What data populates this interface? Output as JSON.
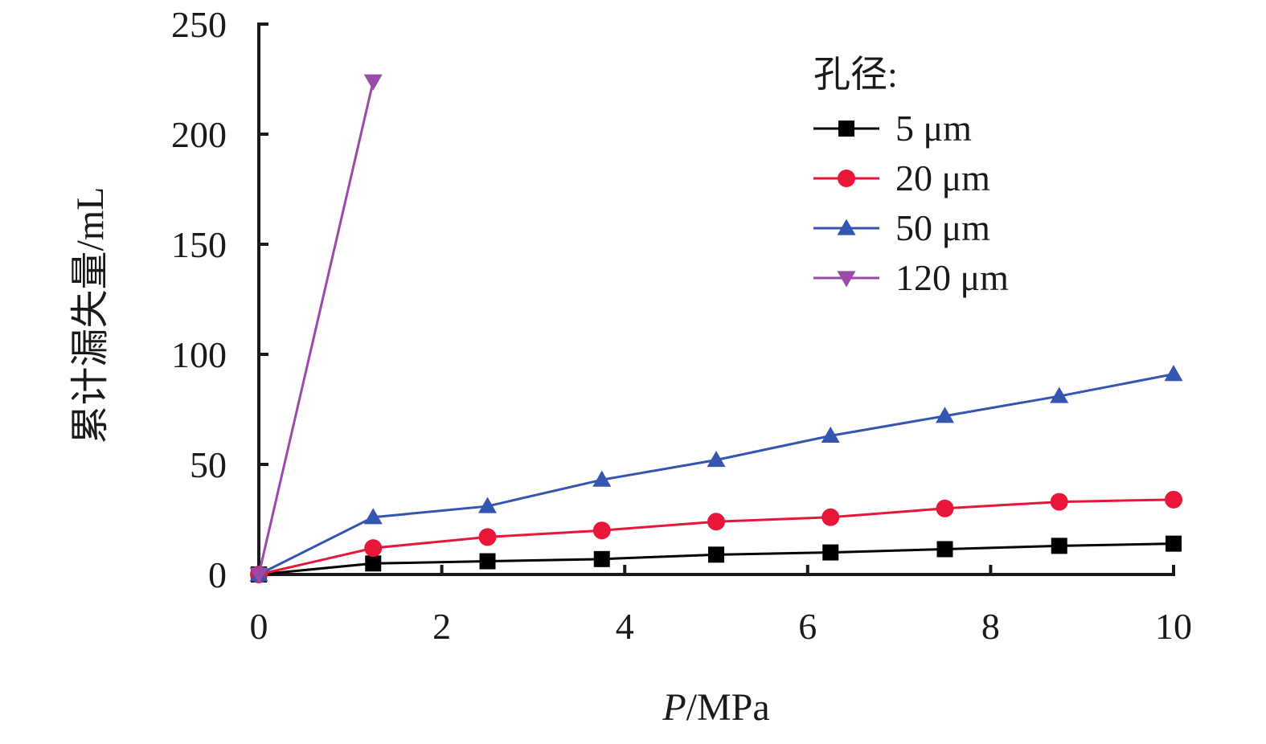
{
  "chart_data": {
    "type": "line",
    "title": "",
    "xlabel_italic": "P",
    "xlabel_rest": "/MPa",
    "ylabel": "累计漏失量/mL",
    "xlim": [
      0,
      10
    ],
    "ylim": [
      0,
      250
    ],
    "xticks": [
      "0",
      "2",
      "4",
      "6",
      "8",
      "10"
    ],
    "yticks": [
      "0",
      "50",
      "100",
      "150",
      "200",
      "250"
    ],
    "grid": false,
    "legend": {
      "title": "孔径:",
      "placement": "top-right"
    },
    "series": [
      {
        "name": "5 μm",
        "color": "#000000",
        "marker": "square",
        "x": [
          0,
          1.25,
          2.5,
          3.75,
          5,
          6.25,
          7.5,
          8.75,
          10
        ],
        "y": [
          0,
          5,
          6,
          7,
          9,
          10,
          11.5,
          13,
          14
        ]
      },
      {
        "name": "20 μm",
        "color": "#e8173a",
        "marker": "circle",
        "x": [
          0,
          1.25,
          2.5,
          3.75,
          5,
          6.25,
          7.5,
          8.75,
          10
        ],
        "y": [
          0,
          12,
          17,
          20,
          24,
          26,
          30,
          33,
          34
        ]
      },
      {
        "name": "50 μm",
        "color": "#3455b0",
        "marker": "triangle-up",
        "x": [
          0,
          1.25,
          2.5,
          3.75,
          5,
          6.25,
          7.5,
          8.75,
          10
        ],
        "y": [
          0,
          26,
          31,
          43,
          52,
          63,
          72,
          81,
          91
        ]
      },
      {
        "name": "120 μm",
        "color": "#9a4aa8",
        "marker": "triangle-down",
        "x": [
          0,
          1.25
        ],
        "y": [
          0,
          224
        ]
      }
    ]
  }
}
